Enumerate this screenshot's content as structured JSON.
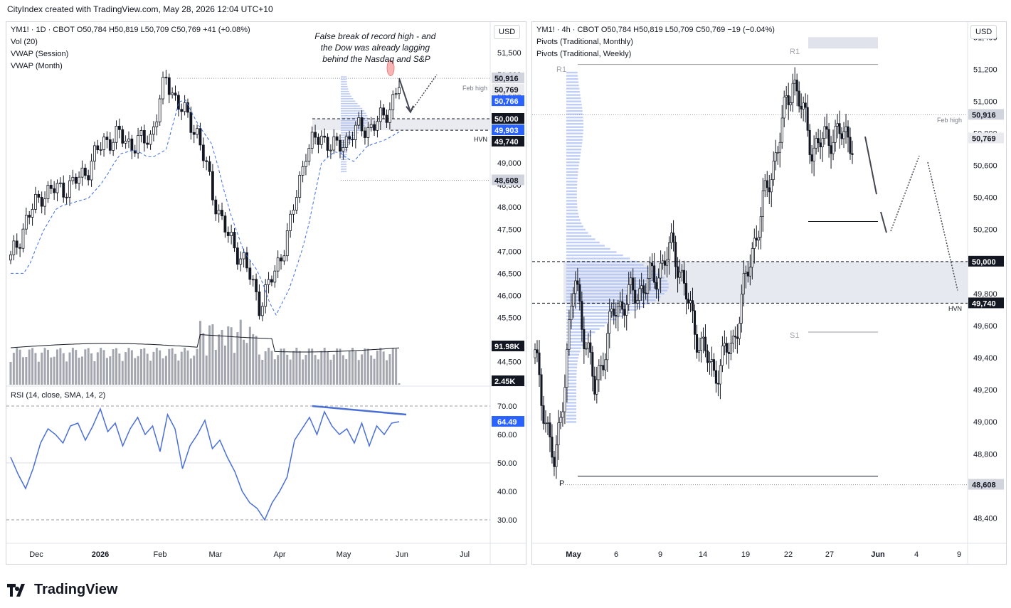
{
  "header": {
    "text": "CityIndex created with TradingView.com, May 28, 2026 12:04 UTC+10"
  },
  "footer": {
    "brand": "TradingView"
  },
  "colors": {
    "rsi": "#4a6fd6",
    "vwap": "#3d6fe0",
    "price_label_blue": "#2962ff",
    "hvn_band": "#e0e3eb",
    "profile": "#a9bdf5"
  },
  "left": {
    "legend": {
      "line1": "YM1! · 1D · CBOT  O50,784  H50,819  L50,709  C50,769  +41 (+0.08%)",
      "line2": "Vol (20)",
      "line3": "VWAP (Session)",
      "line4": "VWAP (Month)"
    },
    "currency": "USD",
    "annotation": "False break of record high - and the Dow was already lagging behind the Nasdaq and S&P",
    "feb_high_label": "Feb high",
    "hvn_label": "HVN",
    "price_ticks": [
      "51,500",
      "51,000",
      "50,500",
      "50,000",
      "49,000",
      "48,500",
      "48,000",
      "47,500",
      "47,000",
      "46,500",
      "46,000",
      "45,500",
      "44,500"
    ],
    "price_labels": [
      {
        "text": "50,916",
        "kind": "gray"
      },
      {
        "text": "50,769",
        "kind": "light"
      },
      {
        "text": "50,766",
        "kind": "blue"
      },
      {
        "text": "50,000",
        "kind": "dark"
      },
      {
        "text": "49,903",
        "kind": "blue"
      },
      {
        "text": "49,740",
        "kind": "dark"
      },
      {
        "text": "48,608",
        "kind": "gray"
      }
    ],
    "volume_labels": [
      {
        "text": "91.98K"
      },
      {
        "text": "2.45K"
      }
    ],
    "rsi_legend": "RSI (14, close, SMA, 14, 2)",
    "rsi_ticks": [
      "70.00",
      "60.00",
      "50.00",
      "40.00",
      "30.00"
    ],
    "rsi_value": "64.49",
    "x_labels": [
      "Dec",
      "2026",
      "Feb",
      "Mar",
      "Apr",
      "May",
      "Jun",
      "Jul"
    ]
  },
  "right": {
    "legend": {
      "line1": "YM1! · 4h · CBOT  O50,784  H50,819  L50,709  C50,769  −19 (−0.04%)",
      "line2": "Pivots (Traditional, Monthly)",
      "line3": "Pivots (Traditional, Weekly)"
    },
    "currency": "USD",
    "feb_high_label": "Feb high",
    "hvn_label": "HVN",
    "pivot_labels": {
      "r1_month": "R1",
      "r1_week": "R1",
      "s1": "S1",
      "p": "P"
    },
    "price_ticks": [
      "51,400",
      "51,200",
      "51,000",
      "50,800",
      "50,600",
      "50,400",
      "50,200",
      "49,800",
      "49,600",
      "49,400",
      "49,200",
      "49,000",
      "48,800",
      "48,400"
    ],
    "price_labels": [
      {
        "text": "50,916",
        "kind": "gray"
      },
      {
        "text": "50,769",
        "kind": "light"
      },
      {
        "text": "50,000",
        "kind": "dark"
      },
      {
        "text": "49,740",
        "kind": "dark"
      },
      {
        "text": "48,608",
        "kind": "gray"
      }
    ],
    "x_labels": [
      "May",
      "6",
      "9",
      "14",
      "19",
      "22",
      "27",
      "Jun",
      "4",
      "9"
    ]
  },
  "chart_data": [
    {
      "type": "candlestick",
      "symbol": "YM1!",
      "timeframe": "1D",
      "x": [
        "Dec",
        "2026",
        "Feb",
        "Mar",
        "Apr",
        "May",
        "Jun",
        "Jul"
      ],
      "ylim": [
        44300,
        51900
      ],
      "close_path_approx": [
        {
          "date": "Nov 25",
          "close": 46800
        },
        {
          "date": "Dec 3",
          "close": 47700
        },
        {
          "date": "Dec 10",
          "close": 48300
        },
        {
          "date": "Dec 17",
          "close": 48400
        },
        {
          "date": "Dec 24",
          "close": 48500
        },
        {
          "date": "Jan 2",
          "close": 48900
        },
        {
          "date": "Jan 12",
          "close": 49500
        },
        {
          "date": "Jan 20",
          "close": 49600
        },
        {
          "date": "Jan 28",
          "close": 49400
        },
        {
          "date": "Feb 5",
          "close": 49600
        },
        {
          "date": "Feb 11",
          "close": 50900
        },
        {
          "date": "Feb 18",
          "close": 50200
        },
        {
          "date": "Feb 25",
          "close": 49700
        },
        {
          "date": "Mar 4",
          "close": 48300
        },
        {
          "date": "Mar 11",
          "close": 47300
        },
        {
          "date": "Mar 18",
          "close": 46800
        },
        {
          "date": "Mar 25",
          "close": 45800
        },
        {
          "date": "Mar 31",
          "close": 46500
        },
        {
          "date": "Apr 8",
          "close": 47600
        },
        {
          "date": "Apr 15",
          "close": 49300
        },
        {
          "date": "Apr 22",
          "close": 49600
        },
        {
          "date": "Apr 29",
          "close": 49300
        },
        {
          "date": "May 6",
          "close": 49700
        },
        {
          "date": "May 13",
          "close": 49800
        },
        {
          "date": "May 20",
          "close": 50000
        },
        {
          "date": "May 27",
          "close": 50769
        }
      ],
      "levels": {
        "feb_high": 50916,
        "round": 50000,
        "hvn": 49740,
        "low_ref": 48608,
        "vwap_session": 50766,
        "vwap_month": 49903
      },
      "volume": {
        "sma20_label": "91.98K",
        "current_label": "2.45K"
      },
      "rsi": {
        "params": "14, close, SMA, 14, 2",
        "current": 64.49,
        "levels": [
          70,
          30
        ],
        "values_approx": [
          52,
          46,
          41,
          48,
          57,
          62,
          60,
          57,
          63,
          64,
          58,
          63,
          69,
          61,
          64,
          56,
          62,
          66,
          60,
          63,
          54,
          67,
          62,
          48,
          56,
          60,
          65,
          55,
          58,
          52,
          47,
          40,
          36,
          34,
          30,
          36,
          40,
          45,
          58,
          62,
          66,
          60,
          68,
          63,
          60,
          62,
          57,
          64,
          56,
          63,
          60,
          64,
          64.49
        ]
      }
    },
    {
      "type": "candlestick",
      "symbol": "YM1!",
      "timeframe": "4h",
      "x": [
        "May",
        "6",
        "9",
        "14",
        "19",
        "22",
        "27",
        "Jun",
        "4",
        "9"
      ],
      "ylim": [
        48300,
        51450
      ],
      "close_path_approx": [
        {
          "date": "Apr 29",
          "close": 49400
        },
        {
          "date": "May 1",
          "close": 48700
        },
        {
          "date": "May 4",
          "close": 49900
        },
        {
          "date": "May 6",
          "close": 49200
        },
        {
          "date": "May 8",
          "close": 49700
        },
        {
          "date": "May 11",
          "close": 49800
        },
        {
          "date": "May 13",
          "close": 49900
        },
        {
          "date": "May 15",
          "close": 50100
        },
        {
          "date": "May 18",
          "close": 49600
        },
        {
          "date": "May 19",
          "close": 49300
        },
        {
          "date": "May 20",
          "close": 49500
        },
        {
          "date": "May 21",
          "close": 50100
        },
        {
          "date": "May 22",
          "close": 50600
        },
        {
          "date": "May 25",
          "close": 51150
        },
        {
          "date": "May 26",
          "close": 50700
        },
        {
          "date": "May 27",
          "close": 50800
        },
        {
          "date": "May 28",
          "close": 50769
        }
      ],
      "levels": {
        "feb_high": 50916,
        "round": 50000,
        "hvn": 49740,
        "pivot_p_month": 48608,
        "weekly_level": 50250
      }
    }
  ]
}
